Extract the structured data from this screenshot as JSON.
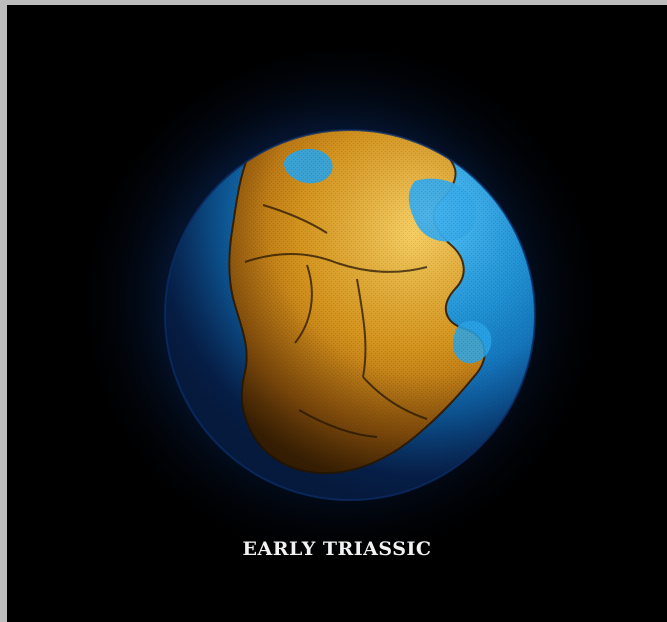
{
  "image": {
    "caption": "EARLY TRIASSIC",
    "subject": "globe-icon",
    "colors": {
      "background": "#000000",
      "frame": "#bdbdbd",
      "ocean": "#1d8fcf",
      "ocean_dark": "#0a3b7a",
      "land": "#d89a1e",
      "land_highlight": "#f3c04a",
      "land_outline": "#3a2306",
      "caption": "#f2f2f2"
    }
  }
}
